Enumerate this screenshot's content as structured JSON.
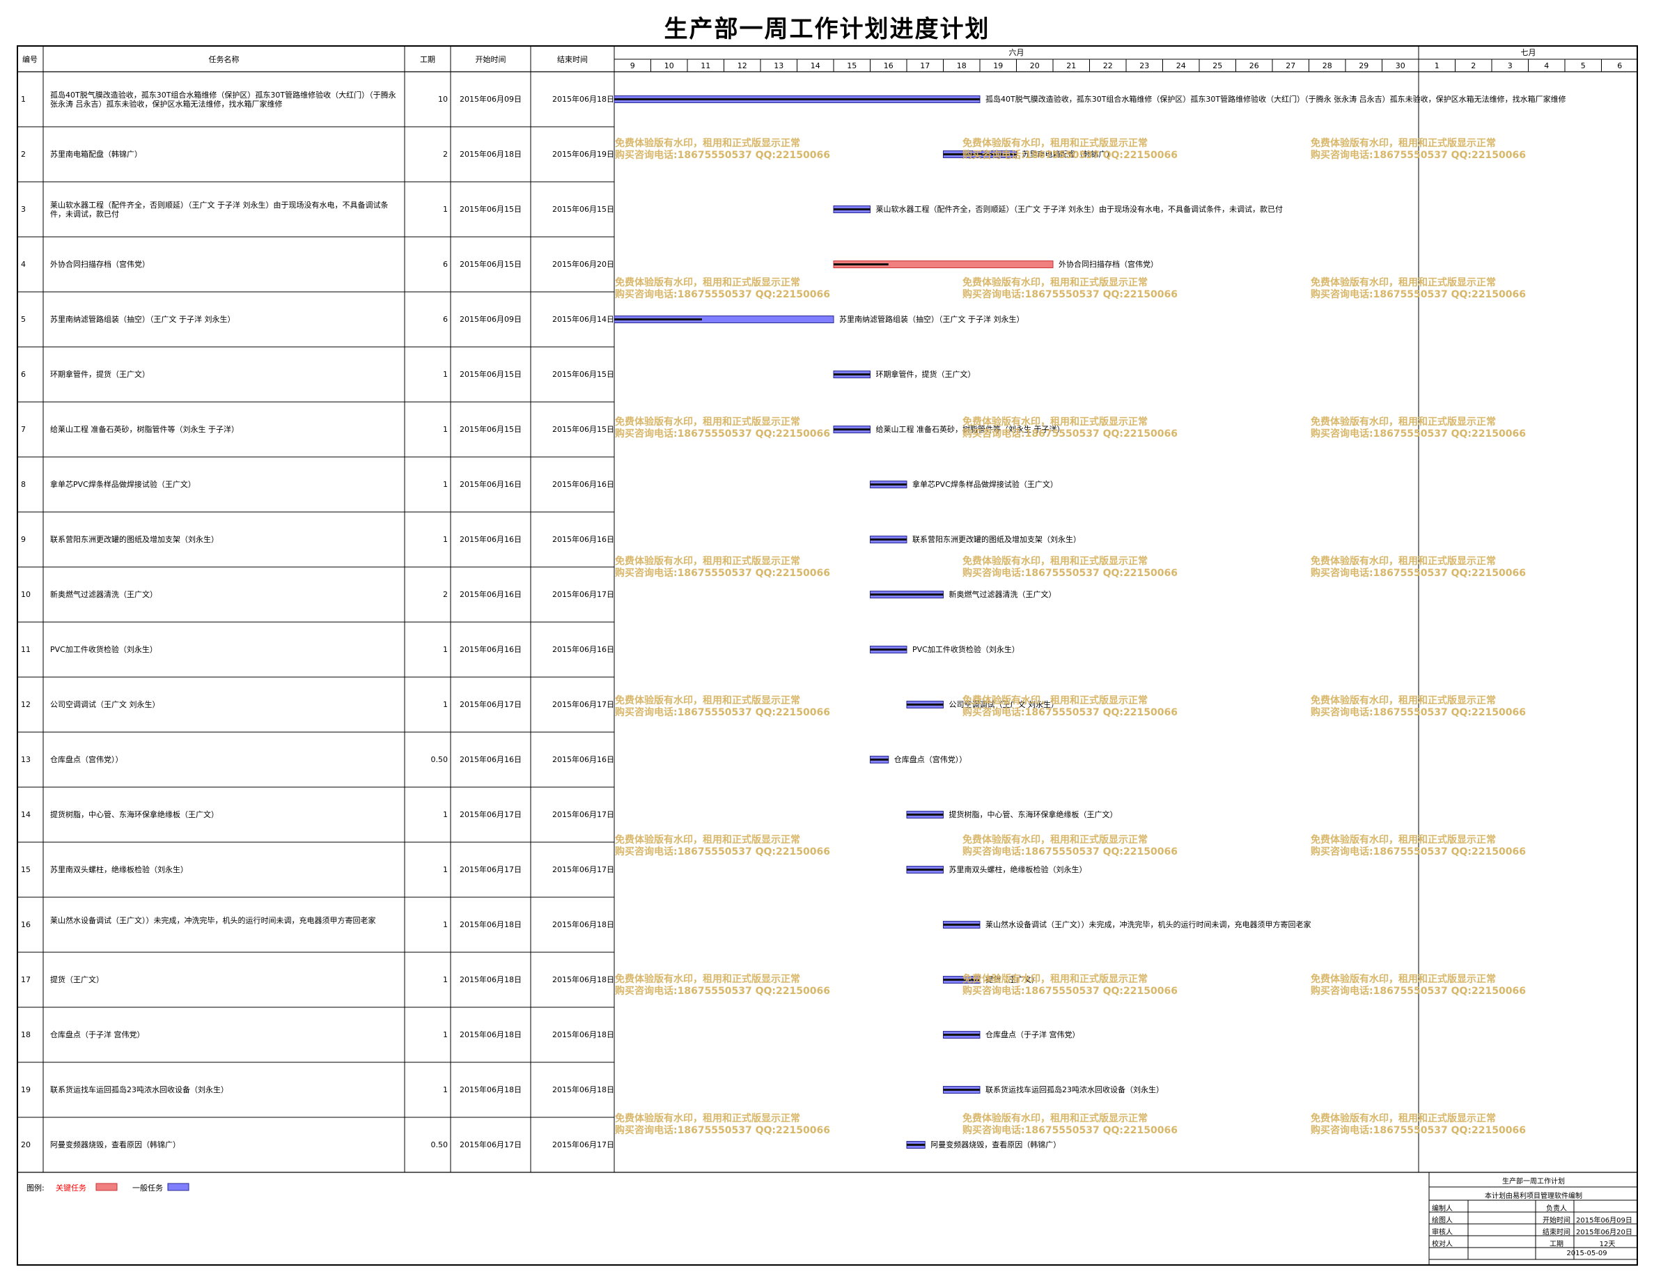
{
  "title": "生产部一周工作计划进度计划",
  "headers": {
    "id": "编号",
    "name": "任务名称",
    "duration": "工期",
    "start": "开始时间",
    "end": "结束时间"
  },
  "timeline": {
    "month1": "六月",
    "month2": "七月",
    "days": [
      "9",
      "10",
      "11",
      "12",
      "13",
      "14",
      "15",
      "16",
      "17",
      "18",
      "19",
      "20",
      "21",
      "22",
      "23",
      "24",
      "25",
      "26",
      "27",
      "28",
      "29",
      "30",
      "1",
      "2",
      "3",
      "4",
      "5",
      "6"
    ]
  },
  "colors": {
    "critical": "#f08080",
    "critical_border": "#cc3333",
    "normal": "#7f7fff",
    "normal_inner": "#1a1a80",
    "watermark": "#d9b76a",
    "legend_critical_text": "#ff0000"
  },
  "tasks": [
    {
      "id": "1",
      "name": "孤岛40T脱气膜改造验收，孤东30T组合水箱维修（保护区）孤东30T管路维修验收（大红门）（于腾永 张永涛 吕永吉）孤东未验收，保护区水箱无法维修，找水箱厂家维修",
      "duration": "10",
      "start": "2015年06月09日",
      "end": "2015年06月18日",
      "s": 0,
      "e": 10,
      "type": "normal",
      "progress": 1.0,
      "label": "孤岛40T脱气膜改造验收，孤东30T组合水箱维修（保护区）孤东30T管路维修验收（大红门）（于腾永 张永涛 吕永吉）孤东未验收，保护区水箱无法维修，找水箱厂家维修"
    },
    {
      "id": "2",
      "name": "苏里南电箱配盘（韩锦广）",
      "duration": "2",
      "start": "2015年06月18日",
      "end": "2015年06月19日",
      "s": 9,
      "e": 11,
      "type": "normal",
      "progress": 1.0,
      "label": "苏里南电箱配盘（韩锦广）"
    },
    {
      "id": "3",
      "name": "莱山软水器工程（配件齐全，否则顺延）（王广文 于子洋 刘永生）由于现场没有水电，不具备调试条件，未调试，款已付",
      "duration": "1",
      "start": "2015年06月15日",
      "end": "2015年06月15日",
      "s": 6,
      "e": 7,
      "type": "normal",
      "progress": 1.0,
      "label": "莱山软水器工程（配件齐全，否则顺延）（王广文 于子洋 刘永生）由于现场没有水电，不具备调试条件，未调试，款已付"
    },
    {
      "id": "4",
      "name": "外协合同扫描存档（宫伟党）",
      "duration": "6",
      "start": "2015年06月15日",
      "end": "2015年06月20日",
      "s": 6,
      "e": 12,
      "type": "critical",
      "progress": 0.25,
      "label": "外协合同扫描存档（宫伟党）"
    },
    {
      "id": "5",
      "name": "苏里南纳滤管路组装（抽空）（王广文 于子洋 刘永生）",
      "duration": "6",
      "start": "2015年06月09日",
      "end": "2015年06月14日",
      "s": 0,
      "e": 6,
      "type": "normal",
      "progress": 0.4,
      "label": "苏里南纳滤管路组装（抽空）（王广文 于子洋 刘永生）"
    },
    {
      "id": "6",
      "name": "环期拿管件，提货（王广文）",
      "duration": "1",
      "start": "2015年06月15日",
      "end": "2015年06月15日",
      "s": 6,
      "e": 7,
      "type": "normal",
      "progress": 1.0,
      "label": "环期拿管件，提货（王广文）"
    },
    {
      "id": "7",
      "name": "给莱山工程 准备石英砂，树脂管件等（刘永生 于子洋）",
      "duration": "1",
      "start": "2015年06月15日",
      "end": "2015年06月15日",
      "s": 6,
      "e": 7,
      "type": "normal",
      "progress": 1.0,
      "label": "给莱山工程 准备石英砂，树脂管件等（刘永生 于子洋）"
    },
    {
      "id": "8",
      "name": "拿单芯PVC焊条样品做焊接试验（王广文）",
      "duration": "1",
      "start": "2015年06月16日",
      "end": "2015年06月16日",
      "s": 7,
      "e": 8,
      "type": "normal",
      "progress": 1.0,
      "label": "拿单芯PVC焊条样品做焊接试验（王广文）"
    },
    {
      "id": "9",
      "name": "联系营阳东洲更改罐的图纸及增加支架（刘永生）",
      "duration": "1",
      "start": "2015年06月16日",
      "end": "2015年06月16日",
      "s": 7,
      "e": 8,
      "type": "normal",
      "progress": 1.0,
      "label": "联系营阳东洲更改罐的图纸及增加支架（刘永生）"
    },
    {
      "id": "10",
      "name": "新奥燃气过滤器清洗（王广文）",
      "duration": "2",
      "start": "2015年06月16日",
      "end": "2015年06月17日",
      "s": 7,
      "e": 9,
      "type": "normal",
      "progress": 1.0,
      "label": "新奥燃气过滤器清洗（王广文）"
    },
    {
      "id": "11",
      "name": "PVC加工件收货检验（刘永生）",
      "duration": "1",
      "start": "2015年06月16日",
      "end": "2015年06月16日",
      "s": 7,
      "e": 8,
      "type": "normal",
      "progress": 1.0,
      "label": "PVC加工件收货检验（刘永生）"
    },
    {
      "id": "12",
      "name": "公司空调调试（王广文 刘永生）",
      "duration": "1",
      "start": "2015年06月17日",
      "end": "2015年06月17日",
      "s": 8,
      "e": 9,
      "type": "normal",
      "progress": 1.0,
      "label": "公司空调调试（王广文 刘永生）"
    },
    {
      "id": "13",
      "name": "仓库盘点（宫伟党））",
      "duration": "0.50",
      "start": "2015年06月16日",
      "end": "2015年06月16日",
      "s": 7,
      "e": 7.5,
      "type": "normal",
      "progress": 1.0,
      "label": "仓库盘点（宫伟党））"
    },
    {
      "id": "14",
      "name": "提货树脂，中心管、东海环保拿绝缘板（王广文）",
      "duration": "1",
      "start": "2015年06月17日",
      "end": "2015年06月17日",
      "s": 8,
      "e": 9,
      "type": "normal",
      "progress": 1.0,
      "label": "提货树脂，中心管、东海环保拿绝缘板（王广文）"
    },
    {
      "id": "15",
      "name": "苏里南双头螺柱，绝缘板检验（刘永生）",
      "duration": "1",
      "start": "2015年06月17日",
      "end": "2015年06月17日",
      "s": 8,
      "e": 9,
      "type": "normal",
      "progress": 1.0,
      "label": "苏里南双头螺柱，绝缘板检验（刘永生）"
    },
    {
      "id": "16",
      "name": "莱山然水设备调试（王广文））未完成，冲洗完毕，机头的运行时间未调，充电器须甲方寄回老家",
      "duration": "1",
      "start": "2015年06月18日",
      "end": "2015年06月18日",
      "s": 9,
      "e": 10,
      "type": "normal",
      "progress": 1.0,
      "label": "莱山然水设备调试（王广文））未完成，冲洗完毕，机头的运行时间未调，充电器须甲方寄回老家"
    },
    {
      "id": "17",
      "name": "提货（王广文）",
      "duration": "1",
      "start": "2015年06月18日",
      "end": "2015年06月18日",
      "s": 9,
      "e": 10,
      "type": "normal",
      "progress": 1.0,
      "label": "提货（王广文）"
    },
    {
      "id": "18",
      "name": "仓库盘点（于子洋 宫伟党）",
      "duration": "1",
      "start": "2015年06月18日",
      "end": "2015年06月18日",
      "s": 9,
      "e": 10,
      "type": "normal",
      "progress": 1.0,
      "label": "仓库盘点（于子洋 宫伟党）"
    },
    {
      "id": "19",
      "name": "联系货运找车运回孤岛23吨浓水回收设备（刘永生）",
      "duration": "1",
      "start": "2015年06月18日",
      "end": "2015年06月18日",
      "s": 9,
      "e": 10,
      "type": "normal",
      "progress": 1.0,
      "label": "联系货运找车运回孤岛23吨浓水回收设备（刘永生）"
    },
    {
      "id": "20",
      "name": "阿曼变频器烧毁，查看原因（韩锦广）",
      "duration": "0.50",
      "start": "2015年06月17日",
      "end": "2015年06月17日",
      "s": 8,
      "e": 8.5,
      "type": "normal",
      "progress": 1.0,
      "label": "阿曼变频器烧毁，查看原因（韩锦广）"
    }
  ],
  "watermark": {
    "line1": "免费体验版有水印，租用和正式版显示正常",
    "line2": "购买咨询电话:18675550537 QQ:22150066"
  },
  "legend": {
    "label": "图例:",
    "critical": "关键任务",
    "normal": "一般任务"
  },
  "infobox": {
    "title": "生产部一周工作计划",
    "subtitle": "本计划由易利项目管理软件编制",
    "editor_label": "编制人",
    "owner_label": "负责人",
    "drawer_label": "绘图人",
    "start_label": "开始时间",
    "start_value": "2015年06月09日",
    "reviewer_label": "审核人",
    "end_label": "结束时间",
    "end_value": "2015年06月20日",
    "duration_label": "工期",
    "duration_value": "12天",
    "checker_label": "校对人",
    "date": "2015-05-09"
  }
}
